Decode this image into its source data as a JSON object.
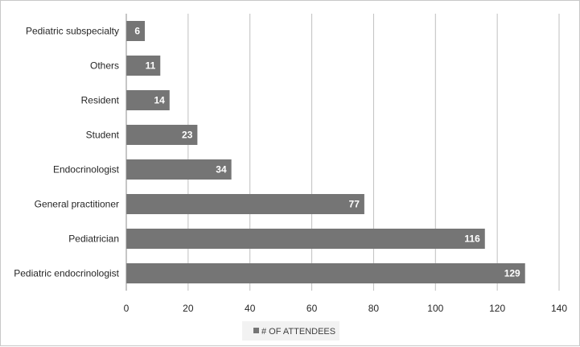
{
  "chart_data": {
    "type": "bar",
    "orientation": "horizontal",
    "categories": [
      "Pediatric subspecialty",
      "Others",
      "Resident",
      "Student",
      "Endocrinologist",
      "General practitioner",
      "Pediatrician",
      "Pediatric endocrinologist"
    ],
    "series": [
      {
        "name": "# OF ATTENDEES",
        "values": [
          6,
          11,
          14,
          23,
          34,
          77,
          116,
          129
        ],
        "color": "#757575"
      }
    ],
    "xlim": [
      0,
      140
    ],
    "xticks": [
      0,
      20,
      40,
      60,
      80,
      100,
      120,
      140
    ],
    "title": "",
    "xlabel": "",
    "ylabel": "",
    "grid": "vertical",
    "data_labels": true,
    "legend": {
      "position": "bottom",
      "entries": [
        "# OF ATTENDEES"
      ]
    }
  }
}
